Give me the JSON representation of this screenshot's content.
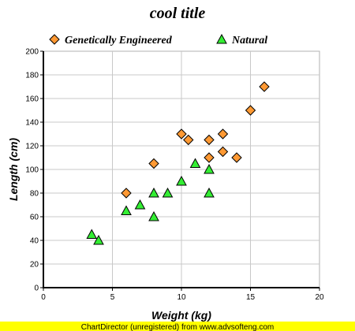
{
  "chart_data": {
    "type": "scatter",
    "title": "cool title",
    "xlabel": "Weight (kg)",
    "ylabel": "Length (cm)",
    "xlim": [
      0,
      20
    ],
    "ylim": [
      0,
      200
    ],
    "x_ticks": [
      "0",
      "5",
      "10",
      "15",
      "20"
    ],
    "y_ticks": [
      "0",
      "20",
      "40",
      "60",
      "80",
      "100",
      "120",
      "140",
      "160",
      "180",
      "200"
    ],
    "grid": true,
    "legend_position": "top",
    "series": [
      {
        "name": "Genetically Engineered",
        "marker": "diamond",
        "color": "#ff9933",
        "points": [
          {
            "x": 6,
            "y": 80
          },
          {
            "x": 8,
            "y": 105
          },
          {
            "x": 10,
            "y": 130
          },
          {
            "x": 10.5,
            "y": 125
          },
          {
            "x": 12,
            "y": 110
          },
          {
            "x": 12,
            "y": 125
          },
          {
            "x": 13,
            "y": 115
          },
          {
            "x": 13,
            "y": 130
          },
          {
            "x": 14,
            "y": 110
          },
          {
            "x": 15,
            "y": 150
          },
          {
            "x": 16,
            "y": 170
          }
        ]
      },
      {
        "name": "Natural",
        "marker": "triangle",
        "color": "#33ee33",
        "points": [
          {
            "x": 3.5,
            "y": 45
          },
          {
            "x": 4,
            "y": 40
          },
          {
            "x": 6,
            "y": 65
          },
          {
            "x": 7,
            "y": 70
          },
          {
            "x": 8,
            "y": 80
          },
          {
            "x": 8,
            "y": 60
          },
          {
            "x": 9,
            "y": 80
          },
          {
            "x": 10,
            "y": 90
          },
          {
            "x": 11,
            "y": 105
          },
          {
            "x": 12,
            "y": 100
          },
          {
            "x": 12,
            "y": 80
          }
        ]
      }
    ]
  },
  "footer": {
    "text": "ChartDirector (unregistered) from www.advsofteng.com",
    "background": "#ffff00"
  }
}
